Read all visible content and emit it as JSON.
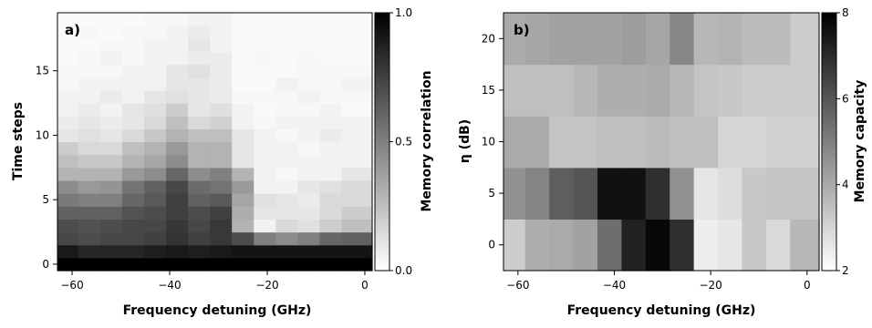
{
  "chart_data": [
    {
      "type": "heatmap",
      "panel_label": "a)",
      "xlabel": "Frequency detuning (GHz)",
      "ylabel": "Time steps",
      "colorbar_label": "Memory correlation",
      "xlim": [
        -63,
        1.5
      ],
      "ylim": [
        -0.5,
        19.5
      ],
      "xticks": [
        -60,
        -40,
        -20,
        0
      ],
      "xtick_labels": [
        "−60",
        "−40",
        "−20",
        "0"
      ],
      "yticks": [
        0,
        5,
        10,
        15
      ],
      "ytick_labels": [
        "0",
        "5",
        "10",
        "15"
      ],
      "cbar_min": 0.0,
      "cbar_max": 1.0,
      "cbar_ticks": [
        0.0,
        0.5,
        1.0
      ],
      "cbar_tick_labels": [
        "0.0",
        "0.5",
        "1.0"
      ],
      "x_centers": [
        -61,
        -56.5,
        -52,
        -47.5,
        -43,
        -38.5,
        -34,
        -29.5,
        -25,
        -20.5,
        -16,
        -11.5,
        -7,
        -2.5
      ],
      "y_rows": [
        0,
        1,
        2,
        3,
        4,
        5,
        6,
        7,
        8,
        9,
        10,
        11,
        12,
        13,
        14,
        15,
        16,
        17,
        18,
        19
      ],
      "z": [
        [
          1.0,
          1.0,
          1.0,
          1.0,
          1.0,
          1.0,
          1.0,
          1.0,
          1.0,
          1.0,
          1.0,
          1.0,
          1.0,
          1.0
        ],
        [
          0.9,
          0.85,
          0.85,
          0.85,
          0.88,
          0.9,
          0.88,
          0.9,
          0.92,
          0.92,
          0.92,
          0.92,
          0.92,
          0.92
        ],
        [
          0.72,
          0.7,
          0.72,
          0.72,
          0.75,
          0.8,
          0.75,
          0.78,
          0.7,
          0.5,
          0.45,
          0.5,
          0.6,
          0.62
        ],
        [
          0.7,
          0.68,
          0.7,
          0.72,
          0.72,
          0.78,
          0.72,
          0.78,
          0.3,
          0.05,
          0.15,
          0.12,
          0.2,
          0.25
        ],
        [
          0.62,
          0.62,
          0.62,
          0.68,
          0.7,
          0.75,
          0.7,
          0.75,
          0.32,
          0.1,
          0.1,
          0.1,
          0.15,
          0.2
        ],
        [
          0.52,
          0.5,
          0.5,
          0.6,
          0.65,
          0.75,
          0.62,
          0.65,
          0.35,
          0.12,
          0.1,
          0.08,
          0.15,
          0.15
        ],
        [
          0.45,
          0.4,
          0.42,
          0.55,
          0.62,
          0.72,
          0.58,
          0.55,
          0.4,
          0.05,
          0.05,
          0.1,
          0.12,
          0.15
        ],
        [
          0.3,
          0.3,
          0.3,
          0.4,
          0.45,
          0.6,
          0.45,
          0.5,
          0.3,
          0.05,
          0.03,
          0.05,
          0.05,
          0.1
        ],
        [
          0.25,
          0.22,
          0.22,
          0.3,
          0.35,
          0.45,
          0.3,
          0.3,
          0.1,
          0.05,
          0.05,
          0.05,
          0.05,
          0.05
        ],
        [
          0.2,
          0.15,
          0.15,
          0.25,
          0.3,
          0.4,
          0.3,
          0.3,
          0.1,
          0.05,
          0.05,
          0.03,
          0.05,
          0.05
        ],
        [
          0.1,
          0.12,
          0.1,
          0.15,
          0.22,
          0.3,
          0.25,
          0.25,
          0.1,
          0.05,
          0.03,
          0.05,
          0.08,
          0.05
        ],
        [
          0.08,
          0.1,
          0.08,
          0.1,
          0.15,
          0.25,
          0.15,
          0.18,
          0.05,
          0.03,
          0.05,
          0.05,
          0.05,
          0.05
        ],
        [
          0.05,
          0.08,
          0.05,
          0.1,
          0.12,
          0.2,
          0.1,
          0.12,
          0.05,
          0.02,
          0.03,
          0.03,
          0.05,
          0.02
        ],
        [
          0.05,
          0.05,
          0.08,
          0.05,
          0.1,
          0.12,
          0.1,
          0.08,
          0.03,
          0.03,
          0.03,
          0.05,
          0.03,
          0.03
        ],
        [
          0.03,
          0.05,
          0.05,
          0.05,
          0.05,
          0.1,
          0.1,
          0.08,
          0.02,
          0.02,
          0.05,
          0.03,
          0.03,
          0.05
        ],
        [
          0.03,
          0.03,
          0.03,
          0.05,
          0.05,
          0.1,
          0.12,
          0.08,
          0.02,
          0.02,
          0.02,
          0.03,
          0.03,
          0.03
        ],
        [
          0.02,
          0.03,
          0.05,
          0.03,
          0.05,
          0.05,
          0.08,
          0.08,
          0.02,
          0.03,
          0.02,
          0.03,
          0.02,
          0.02
        ],
        [
          0.02,
          0.02,
          0.03,
          0.03,
          0.05,
          0.05,
          0.1,
          0.05,
          0.02,
          0.02,
          0.02,
          0.02,
          0.02,
          0.02
        ],
        [
          0.02,
          0.03,
          0.02,
          0.03,
          0.03,
          0.05,
          0.08,
          0.05,
          0.02,
          0.02,
          0.02,
          0.02,
          0.02,
          0.02
        ],
        [
          0.02,
          0.02,
          0.02,
          0.02,
          0.03,
          0.03,
          0.05,
          0.05,
          0.02,
          0.02,
          0.02,
          0.02,
          0.02,
          0.02
        ]
      ]
    },
    {
      "type": "heatmap",
      "panel_label": "b)",
      "xlabel": "Frequency detuning (GHz)",
      "ylabel": "η (dB)",
      "colorbar_label": "Memory capacity",
      "xlim": [
        -63,
        2.5
      ],
      "ylim": [
        -2.5,
        22.5
      ],
      "xticks": [
        -60,
        -40,
        -20,
        0
      ],
      "xtick_labels": [
        "−60",
        "−40",
        "−20",
        "0"
      ],
      "yticks": [
        0,
        5,
        10,
        15,
        20
      ],
      "ytick_labels": [
        "0",
        "5",
        "10",
        "15",
        "20"
      ],
      "cbar_min": 2,
      "cbar_max": 8,
      "cbar_ticks": [
        2,
        4,
        6,
        8
      ],
      "cbar_tick_labels": [
        "2",
        "4",
        "6",
        "8"
      ],
      "x_centers": [
        -61,
        -56,
        -51,
        -46,
        -41,
        -36,
        -31,
        -26,
        -21,
        -16,
        -11,
        -6,
        -1
      ],
      "y_rows": [
        0,
        5,
        10,
        15,
        20
      ],
      "z": [
        [
          3.2,
          3.9,
          4.0,
          4.2,
          5.4,
          7.2,
          7.8,
          6.9,
          2.4,
          2.6,
          3.3,
          2.9,
          3.7
        ],
        [
          4.6,
          4.9,
          5.8,
          6.0,
          7.6,
          7.6,
          6.9,
          4.6,
          2.6,
          2.8,
          3.3,
          3.4,
          3.4
        ],
        [
          4.0,
          4.0,
          3.4,
          3.4,
          3.5,
          3.5,
          3.6,
          3.5,
          3.5,
          3.0,
          3.0,
          3.1,
          3.1
        ],
        [
          3.5,
          3.5,
          3.5,
          3.7,
          3.9,
          3.9,
          4.0,
          3.7,
          3.4,
          3.3,
          3.2,
          3.2,
          3.2
        ],
        [
          4.0,
          4.1,
          4.2,
          4.2,
          4.2,
          4.3,
          4.1,
          4.8,
          3.7,
          3.8,
          3.6,
          3.6,
          3.2
        ]
      ]
    }
  ]
}
